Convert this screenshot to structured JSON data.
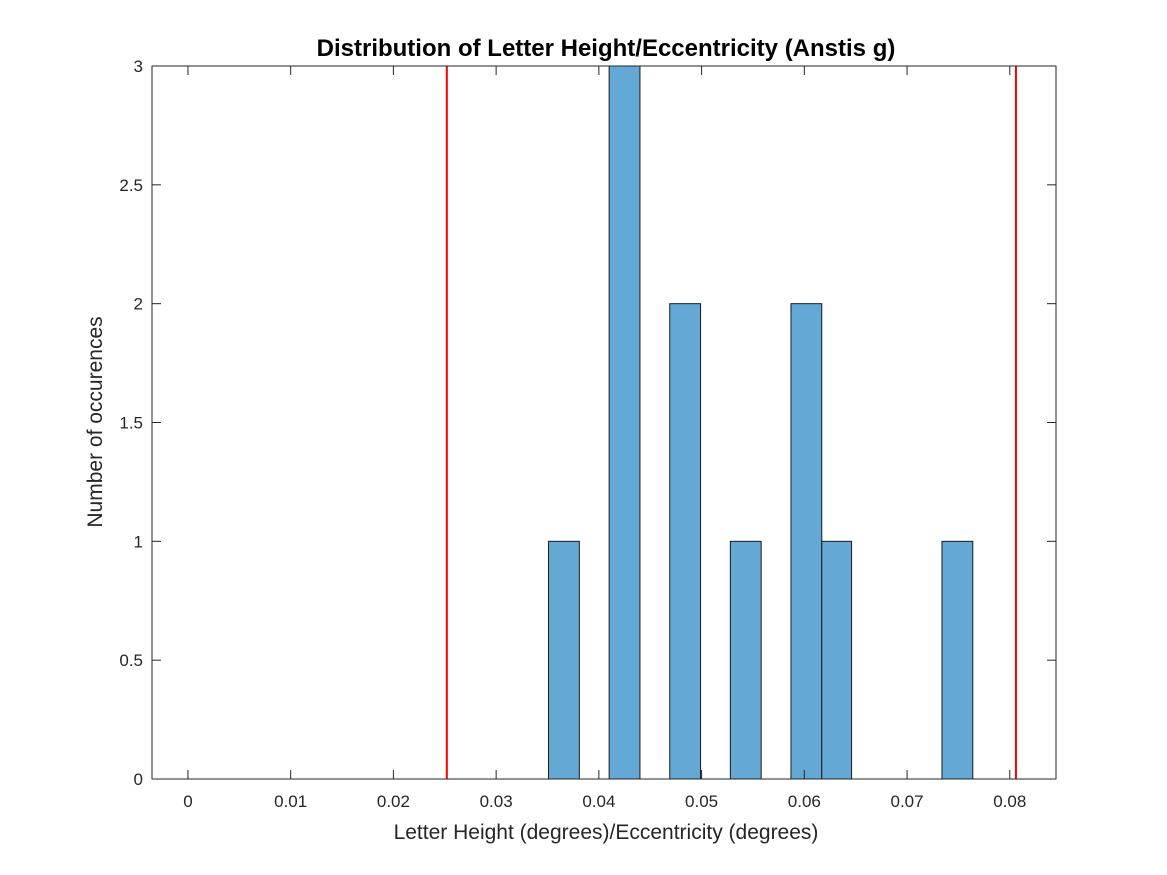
{
  "chart_data": {
    "type": "bar",
    "title": "Distribution of Letter Height/Eccentricity (Anstis g)",
    "xlabel": "Letter Height (degrees)/Eccentricity (degrees)",
    "ylabel": "Number of occurences",
    "xlim": [
      -0.0035,
      0.0845
    ],
    "ylim": [
      0,
      3
    ],
    "xticks": [
      0,
      0.01,
      0.02,
      0.03,
      0.04,
      0.05,
      0.06,
      0.07,
      0.08
    ],
    "xtick_labels": [
      "0",
      "0.01",
      "0.02",
      "0.03",
      "0.04",
      "0.05",
      "0.06",
      "0.07",
      "0.08"
    ],
    "yticks": [
      0,
      0.5,
      1,
      1.5,
      2,
      2.5,
      3
    ],
    "ytick_labels": [
      "0",
      "0.5",
      "1",
      "1.5",
      "2",
      "2.5",
      "3"
    ],
    "bin_width": 0.003,
    "bin_range": [
      0,
      0.081
    ],
    "bars": [
      {
        "x0": 0.0351,
        "x1": 0.0381,
        "count": 1
      },
      {
        "x0": 0.041,
        "x1": 0.044,
        "count": 3
      },
      {
        "x0": 0.0469,
        "x1": 0.0499,
        "count": 2
      },
      {
        "x0": 0.0528,
        "x1": 0.0558,
        "count": 1
      },
      {
        "x0": 0.0587,
        "x1": 0.0617,
        "count": 2
      },
      {
        "x0": 0.0617,
        "x1": 0.0646,
        "count": 1
      },
      {
        "x0": 0.0734,
        "x1": 0.0764,
        "count": 1
      }
    ],
    "reference_lines": [
      0.0252,
      0.0806
    ],
    "bar_color": "#64a8d6",
    "bar_edge_color": "#1a1a1a",
    "line_color": "#ff0000",
    "grid": false,
    "legend": "none"
  }
}
